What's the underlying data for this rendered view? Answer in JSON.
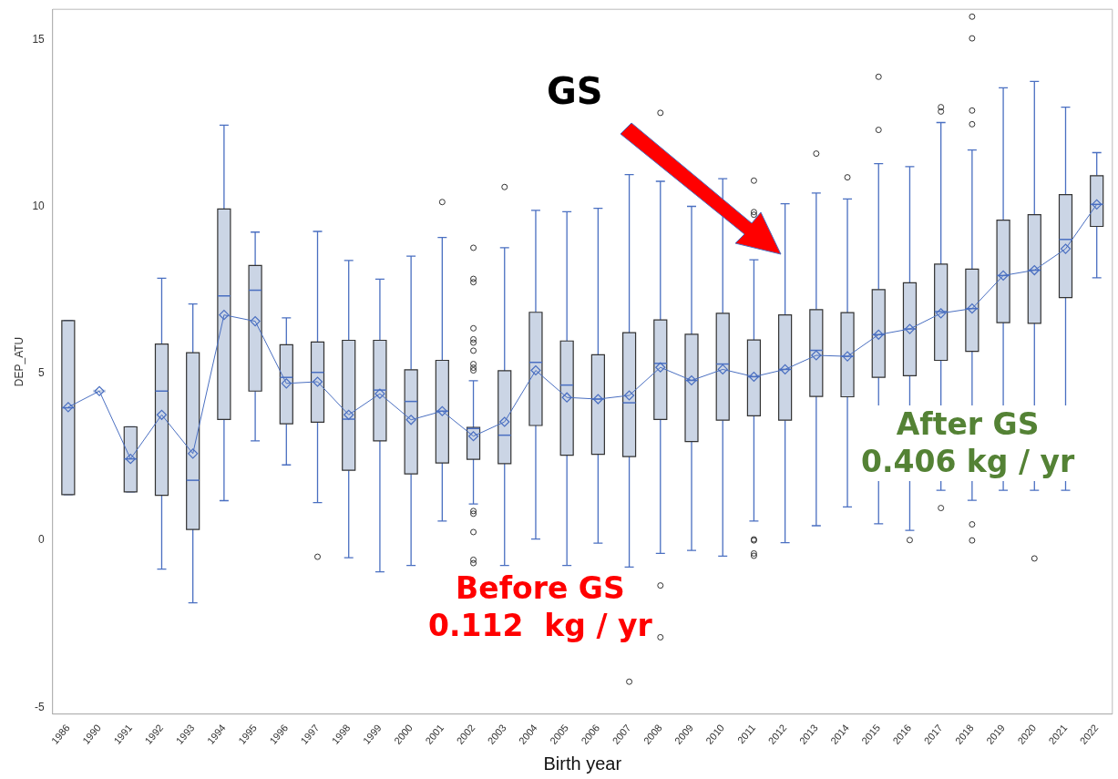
{
  "chart_data": {
    "type": "box",
    "xlabel": "Birth year",
    "ylabel": "DEP_ATU",
    "color": "#cbd5e5",
    "categories": [
      "1986",
      "1990",
      "1991",
      "1992",
      "1993",
      "1994",
      "1995",
      "1996",
      "1997",
      "1998",
      "1999",
      "2000",
      "2001",
      "2002",
      "2003",
      "2004",
      "2005",
      "2006",
      "2007",
      "2008",
      "2009",
      "2010",
      "2011",
      "2012",
      "2013",
      "2014",
      "2015",
      "2016",
      "2017",
      "2018",
      "2019",
      "2020",
      "2021",
      "2022"
    ],
    "boxes": [
      {
        "low": 1.37,
        "q1": 1.37,
        "median": 3.97,
        "q3": 6.58,
        "high": 6.58
      },
      {
        "low": 4.47,
        "q1": 4.47,
        "median": 4.47,
        "q3": 4.47,
        "high": 4.47
      },
      {
        "low": 1.45,
        "q1": 1.45,
        "median": 2.44,
        "q3": 3.4,
        "high": 3.4
      },
      {
        "low": -0.86,
        "q1": 1.35,
        "median": 4.47,
        "q3": 5.88,
        "high": 7.85
      },
      {
        "low": -1.87,
        "q1": 0.33,
        "median": 1.8,
        "q3": 5.62,
        "high": 7.08
      },
      {
        "low": 1.19,
        "q1": 3.62,
        "median": 7.32,
        "q3": 9.92,
        "high": 12.43
      },
      {
        "low": 2.98,
        "q1": 4.47,
        "median": 7.49,
        "q3": 8.23,
        "high": 9.23
      },
      {
        "low": 2.26,
        "q1": 3.49,
        "median": 4.88,
        "q3": 5.86,
        "high": 6.66
      },
      {
        "low": 1.13,
        "q1": 3.54,
        "median": 5.03,
        "q3": 5.94,
        "high": 9.25,
        "outliers": [
          -0.49
        ]
      },
      {
        "low": -0.52,
        "q1": 2.1,
        "median": 3.63,
        "q3": 5.99,
        "high": 8.38
      },
      {
        "low": -0.94,
        "q1": 2.98,
        "median": 4.5,
        "q3": 5.99,
        "high": 7.82
      },
      {
        "low": -0.75,
        "q1": 1.99,
        "median": 4.16,
        "q3": 5.11,
        "high": 8.51
      },
      {
        "low": 0.58,
        "q1": 2.32,
        "median": 3.87,
        "q3": 5.39,
        "high": 9.07,
        "outliers": [
          10.13
        ]
      },
      {
        "low": 1.09,
        "q1": 2.43,
        "median": 3.35,
        "q3": 3.38,
        "high": 4.78,
        "outliers": [
          8.76,
          7.83,
          7.73,
          6.35,
          6.02,
          5.92,
          5.68,
          5.28,
          5.17,
          5.09,
          0.88,
          0.8,
          0.25,
          -0.58,
          -0.68
        ]
      },
      {
        "low": -0.75,
        "q1": 2.3,
        "median": 3.15,
        "q3": 5.08,
        "high": 8.76,
        "outliers": [
          10.58
        ]
      },
      {
        "low": 0.04,
        "q1": 3.44,
        "median": 5.33,
        "q3": 6.83,
        "high": 9.88
      },
      {
        "low": -0.75,
        "q1": 2.55,
        "median": 4.65,
        "q3": 5.97,
        "high": 9.84
      },
      {
        "low": -0.08,
        "q1": 2.58,
        "median": 4.23,
        "q3": 5.56,
        "high": 9.94
      },
      {
        "low": -0.8,
        "q1": 2.51,
        "median": 4.12,
        "q3": 6.22,
        "high": 10.95,
        "outliers": [
          -4.23
        ]
      },
      {
        "low": -0.39,
        "q1": 3.62,
        "median": 5.3,
        "q3": 6.6,
        "high": 10.75,
        "outliers": [
          12.8,
          -1.35,
          -2.9
        ]
      },
      {
        "low": -0.3,
        "q1": 2.96,
        "median": 4.79,
        "q3": 6.17,
        "high": 10
      },
      {
        "low": -0.47,
        "q1": 3.6,
        "median": 5.28,
        "q3": 6.8,
        "high": 10.83
      },
      {
        "low": 0.58,
        "q1": 3.73,
        "median": 4.9,
        "q3": 6,
        "high": 8.4,
        "outliers": [
          10.77,
          9.83,
          9.75,
          0.03,
          0,
          -0.39,
          -0.46
        ]
      },
      {
        "low": -0.07,
        "q1": 3.6,
        "median": 5.12,
        "q3": 6.75,
        "high": 10.08
      },
      {
        "low": 0.44,
        "q1": 4.31,
        "median": 5.69,
        "q3": 6.91,
        "high": 10.4,
        "outliers": [
          11.58
        ]
      },
      {
        "low": 1,
        "q1": 4.3,
        "median": 5.51,
        "q3": 6.82,
        "high": 10.22,
        "outliers": [
          10.87
        ]
      },
      {
        "low": 0.5,
        "q1": 4.88,
        "median": 6.16,
        "q3": 7.51,
        "high": 11.28,
        "outliers": [
          13.88,
          12.29
        ]
      },
      {
        "low": 0.3,
        "q1": 4.93,
        "median": 6.33,
        "q3": 7.71,
        "high": 11.19,
        "outliers": [
          0.01
        ]
      },
      {
        "low": 1.5,
        "q1": 5.39,
        "median": 6.85,
        "q3": 8.27,
        "high": 12.51,
        "outliers": [
          12.97,
          12.84,
          0.97
        ]
      },
      {
        "low": 1.2,
        "q1": 5.66,
        "median": 6.94,
        "q3": 8.12,
        "high": 11.69,
        "outliers": [
          15.68,
          15.03,
          12.87,
          12.46,
          0.48,
          0
        ]
      },
      {
        "low": 1.5,
        "q1": 6.52,
        "median": 7.93,
        "q3": 9.59,
        "high": 13.55
      },
      {
        "low": 1.5,
        "q1": 6.5,
        "median": 8.09,
        "q3": 9.75,
        "high": 13.74,
        "outliers": [
          -0.54
        ]
      },
      {
        "low": 1.5,
        "q1": 7.27,
        "median": 9.01,
        "q3": 10.35,
        "high": 12.97
      },
      {
        "low": 7.86,
        "q1": 9.4,
        "median": 10.06,
        "q3": 10.92,
        "high": 11.61
      }
    ],
    "series": [
      {
        "type": "line",
        "color": "#4a6fc1",
        "values": [
          3.99,
          4.47,
          2.44,
          3.76,
          2.6,
          6.75,
          6.56,
          4.7,
          4.75,
          3.76,
          4.39,
          3.61,
          3.87,
          3.12,
          3.55,
          5.09,
          4.28,
          4.23,
          4.34,
          5.18,
          4.79,
          5.12,
          4.9,
          5.12,
          5.54,
          5.51,
          6.16,
          6.33,
          6.8,
          6.94,
          7.93,
          8.09,
          8.73,
          10.06
        ]
      }
    ],
    "ylim": [
      -5.2,
      15.9
    ],
    "yticks": [
      -5,
      0,
      5,
      10,
      15
    ],
    "grid": false,
    "legend": false,
    "marker": "diamond",
    "annotations": [
      "GS",
      "Before GS\n0.112  kg / yr",
      "After GS\n0.406 kg / yr"
    ]
  }
}
